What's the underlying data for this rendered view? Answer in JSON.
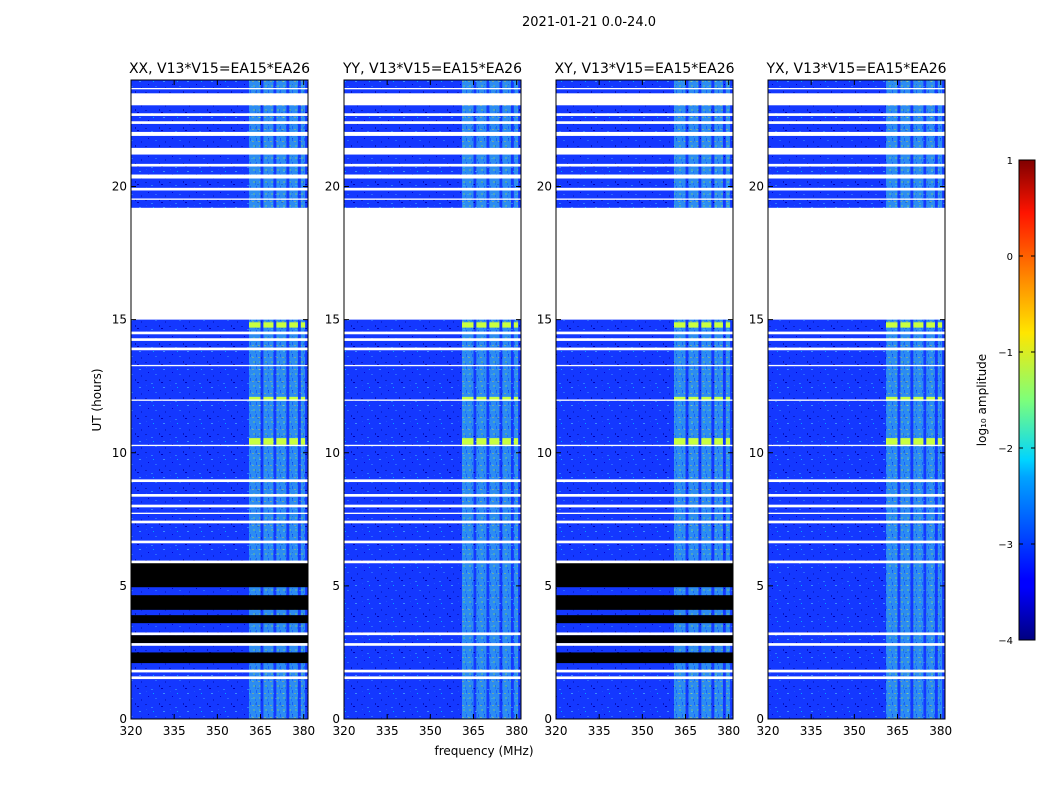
{
  "chart_data": {
    "type": "heatmap",
    "suptitle": "2021-01-21 0.0-24.0",
    "xlabel": "frequency (MHz)",
    "ylabel": "UT (hours)",
    "xlim": [
      320,
      381.5
    ],
    "ylim": [
      0,
      24
    ],
    "xticks": [
      320,
      335,
      350,
      365,
      380
    ],
    "yticks": [
      0,
      5,
      10,
      15,
      20
    ],
    "colormap": "jet",
    "colorbar": {
      "label": "log₁₀ amplitude",
      "range": [
        -4,
        1
      ],
      "ticks": [
        {
          "value": 1,
          "label": "1"
        },
        {
          "value": 0,
          "label": "0"
        },
        {
          "value": -1,
          "label": "−1"
        },
        {
          "value": -2,
          "label": "−2"
        },
        {
          "value": -3,
          "label": "−3"
        },
        {
          "value": -4,
          "label": "−4"
        }
      ]
    },
    "background_level": -3.2,
    "rfi_band_level": -1.8,
    "rfi_bands_mhz": [
      [
        361,
        365
      ],
      [
        366,
        369.5
      ],
      [
        370.5,
        374
      ],
      [
        375,
        378
      ],
      [
        379,
        380.5
      ]
    ],
    "bright_events_ut": [
      [
        10.3,
        10.55
      ],
      [
        11.95,
        12.1
      ],
      [
        14.7,
        14.9
      ]
    ],
    "flagged_ut": [
      [
        1.5,
        1.6
      ],
      [
        1.75,
        1.85
      ],
      [
        2.75,
        2.85
      ],
      [
        3.15,
        3.25
      ],
      [
        5.85,
        5.95
      ],
      [
        6.6,
        6.7
      ],
      [
        7.35,
        7.45
      ],
      [
        7.7,
        7.75
      ],
      [
        7.95,
        8.05
      ],
      [
        8.35,
        8.45
      ],
      [
        8.9,
        9.0
      ],
      [
        10.25,
        10.3
      ],
      [
        11.95,
        12.0
      ],
      [
        13.25,
        13.3
      ],
      [
        13.85,
        13.95
      ],
      [
        14.2,
        14.3
      ],
      [
        14.45,
        14.55
      ],
      [
        15.0,
        19.2
      ],
      [
        19.5,
        19.55
      ],
      [
        19.85,
        19.95
      ],
      [
        20.3,
        20.45
      ],
      [
        20.75,
        20.85
      ],
      [
        21.2,
        21.45
      ],
      [
        21.9,
        22.05
      ],
      [
        22.35,
        22.45
      ],
      [
        22.65,
        22.75
      ],
      [
        23.05,
        23.5
      ],
      [
        23.65,
        23.7
      ]
    ],
    "missing_ut_xx_xy": [
      [
        2.1,
        2.5
      ],
      [
        2.85,
        3.15
      ],
      [
        3.6,
        3.9
      ],
      [
        4.1,
        4.65
      ],
      [
        4.95,
        5.9
      ]
    ],
    "panels": [
      {
        "name": "XX",
        "title": "XX, V13*V15=EA15*EA26"
      },
      {
        "name": "YY",
        "title": "YY, V13*V15=EA15*EA26"
      },
      {
        "name": "XY",
        "title": "XY, V13*V15=EA15*EA26"
      },
      {
        "name": "YX",
        "title": "YX, V13*V15=EA15*EA26"
      }
    ]
  }
}
